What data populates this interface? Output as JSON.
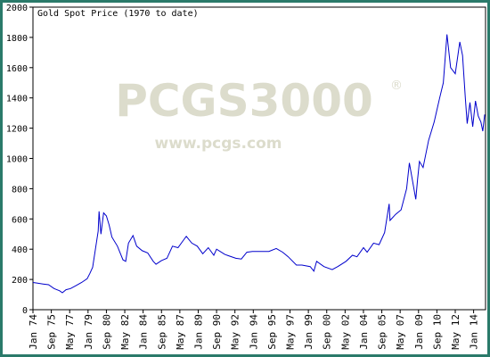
{
  "chart_data": {
    "type": "line",
    "title": "Gold Spot Price (1970 to date)",
    "watermark": {
      "brand": "PCGS3000",
      "mark": "®",
      "site": "www.pcgs.com"
    },
    "color": "#0000cc",
    "x": [
      "1974-01",
      "1974-06",
      "1974-12",
      "1975-06",
      "1975-12",
      "1976-06",
      "1976-09",
      "1977-01",
      "1977-06",
      "1977-12",
      "1978-06",
      "1978-12",
      "1979-03",
      "1979-06",
      "1979-09",
      "1979-12",
      "1980-01",
      "1980-03",
      "1980-06",
      "1980-09",
      "1980-12",
      "1981-03",
      "1981-09",
      "1982-03",
      "1982-06",
      "1982-09",
      "1983-02",
      "1983-06",
      "1983-12",
      "1984-06",
      "1984-12",
      "1985-03",
      "1985-09",
      "1986-03",
      "1986-09",
      "1987-03",
      "1987-09",
      "1987-12",
      "1988-06",
      "1988-12",
      "1989-06",
      "1989-12",
      "1990-06",
      "1990-09",
      "1991-06",
      "1992-06",
      "1992-12",
      "1993-06",
      "1993-12",
      "1994-06",
      "1995-06",
      "1996-02",
      "1996-09",
      "1997-03",
      "1997-12",
      "1998-06",
      "1999-03",
      "1999-07",
      "1999-10",
      "2000-06",
      "2001-03",
      "2001-09",
      "2002-06",
      "2003-01",
      "2003-06",
      "2004-01",
      "2004-05",
      "2004-12",
      "2005-06",
      "2005-12",
      "2006-05",
      "2006-06",
      "2006-12",
      "2007-06",
      "2007-12",
      "2008-03",
      "2008-10",
      "2008-12",
      "2009-02",
      "2009-06",
      "2009-12",
      "2010-06",
      "2010-12",
      "2011-04",
      "2011-08",
      "2011-12",
      "2012-05",
      "2012-10",
      "2013-01",
      "2013-04",
      "2013-06",
      "2013-09",
      "2013-12",
      "2014-03",
      "2014-06",
      "2014-09",
      "2014-11",
      "2015-01"
    ],
    "values": [
      180,
      175,
      170,
      165,
      140,
      125,
      112,
      132,
      140,
      160,
      180,
      205,
      240,
      280,
      400,
      520,
      650,
      500,
      640,
      620,
      560,
      480,
      420,
      330,
      320,
      440,
      490,
      420,
      390,
      375,
      320,
      300,
      325,
      340,
      420,
      410,
      460,
      485,
      440,
      420,
      370,
      410,
      360,
      400,
      365,
      340,
      335,
      380,
      385,
      385,
      385,
      405,
      380,
      350,
      295,
      295,
      285,
      255,
      320,
      285,
      265,
      285,
      320,
      360,
      350,
      410,
      380,
      440,
      430,
      510,
      700,
      590,
      630,
      660,
      800,
      970,
      730,
      860,
      980,
      940,
      1120,
      1240,
      1400,
      1500,
      1820,
      1600,
      1560,
      1770,
      1680,
      1400,
      1230,
      1370,
      1210,
      1380,
      1280,
      1240,
      1180,
      1290
    ],
    "xlim": [
      "1974-01",
      "2015-02"
    ],
    "xticks": [
      {
        "value": "1974-01",
        "label": "Jan 74"
      },
      {
        "value": "1975-09",
        "label": "Sep 75"
      },
      {
        "value": "1977-05",
        "label": "May 77"
      },
      {
        "value": "1979-01",
        "label": "Jan 79"
      },
      {
        "value": "1980-09",
        "label": "Sep 80"
      },
      {
        "value": "1982-05",
        "label": "May 82"
      },
      {
        "value": "1984-01",
        "label": "Jan 84"
      },
      {
        "value": "1985-09",
        "label": "Sep 85"
      },
      {
        "value": "1987-05",
        "label": "May 87"
      },
      {
        "value": "1989-01",
        "label": "Jan 89"
      },
      {
        "value": "1990-09",
        "label": "Sep 90"
      },
      {
        "value": "1992-05",
        "label": "May 92"
      },
      {
        "value": "1994-01",
        "label": "Jan 94"
      },
      {
        "value": "1995-09",
        "label": "Sep 95"
      },
      {
        "value": "1997-05",
        "label": "May 97"
      },
      {
        "value": "1999-01",
        "label": "Jan 99"
      },
      {
        "value": "2000-09",
        "label": "Sep 00"
      },
      {
        "value": "2002-05",
        "label": "May 02"
      },
      {
        "value": "2004-01",
        "label": "Jan 04"
      },
      {
        "value": "2005-09",
        "label": "Sep 05"
      },
      {
        "value": "2007-05",
        "label": "May 07"
      },
      {
        "value": "2009-01",
        "label": "Jan 09"
      },
      {
        "value": "2010-09",
        "label": "Sep 10"
      },
      {
        "value": "2012-05",
        "label": "May 12"
      },
      {
        "value": "2014-01",
        "label": "Jan 14"
      }
    ],
    "ylim": [
      0,
      2000
    ],
    "yticks": [
      0,
      200,
      400,
      600,
      800,
      1000,
      1200,
      1400,
      1600,
      1800,
      2000
    ]
  }
}
